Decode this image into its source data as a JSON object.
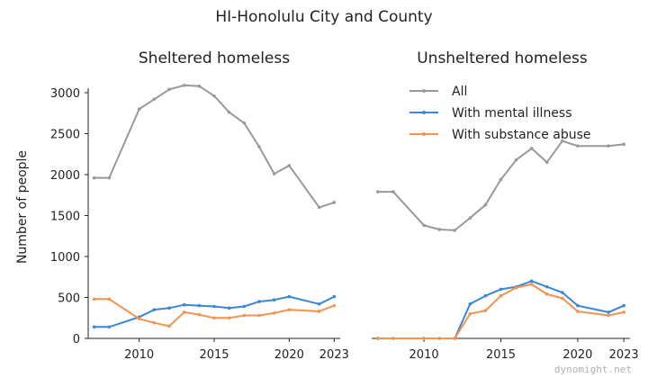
{
  "chart_data": {
    "type": "line",
    "title": "HI-Honolulu City and County",
    "ylabel": "Number of people",
    "xticks": [
      2010,
      2015,
      2020,
      2023
    ],
    "yticks": [
      0,
      500,
      1000,
      1500,
      2000,
      2500,
      3000
    ],
    "ylim": [
      0,
      3200
    ],
    "xlim": [
      2006.6,
      2023.4
    ],
    "grid": false,
    "legend_position": "top-right of right panel",
    "colors": {
      "All": "#999999",
      "With mental illness": "#3b86d6",
      "With substance abuse": "#f4934f"
    },
    "watermark": "dynomight.net",
    "panels": [
      {
        "title": "Sheltered homeless",
        "x": [
          2007,
          2008,
          2010,
          2011,
          2012,
          2013,
          2014,
          2015,
          2016,
          2017,
          2018,
          2019,
          2020,
          2022,
          2023
        ],
        "series": [
          {
            "name": "All",
            "values": [
              1960,
              1960,
              2800,
              2920,
              3040,
              3090,
              3080,
              2960,
              2760,
              2630,
              2340,
              2010,
              2110,
              1600,
              1660
            ]
          },
          {
            "name": "With mental illness",
            "values": [
              140,
              140,
              260,
              350,
              370,
              410,
              400,
              390,
              370,
              390,
              450,
              470,
              510,
              420,
              510
            ]
          },
          {
            "name": "With substance abuse",
            "values": [
              480,
              480,
              240,
              190,
              150,
              320,
              290,
              250,
              250,
              280,
              280,
              310,
              350,
              330,
              400
            ]
          }
        ]
      },
      {
        "title": "Unsheltered homeless",
        "x": [
          2007,
          2008,
          2010,
          2011,
          2012,
          2013,
          2014,
          2015,
          2016,
          2017,
          2018,
          2019,
          2020,
          2022,
          2023
        ],
        "series": [
          {
            "name": "All",
            "values": [
              1790,
              1790,
              1380,
              1330,
              1320,
              1470,
              1630,
              1940,
              2180,
              2320,
              2150,
              2410,
              2350,
              2350,
              2370
            ]
          },
          {
            "name": "With mental illness",
            "values": [
              0,
              0,
              0,
              0,
              0,
              420,
              520,
              600,
              630,
              700,
              630,
              560,
              400,
              320,
              400
            ]
          },
          {
            "name": "With substance abuse",
            "values": [
              0,
              0,
              0,
              0,
              0,
              300,
              340,
              520,
              620,
              660,
              540,
              490,
              330,
              280,
              320
            ]
          }
        ]
      }
    ]
  }
}
